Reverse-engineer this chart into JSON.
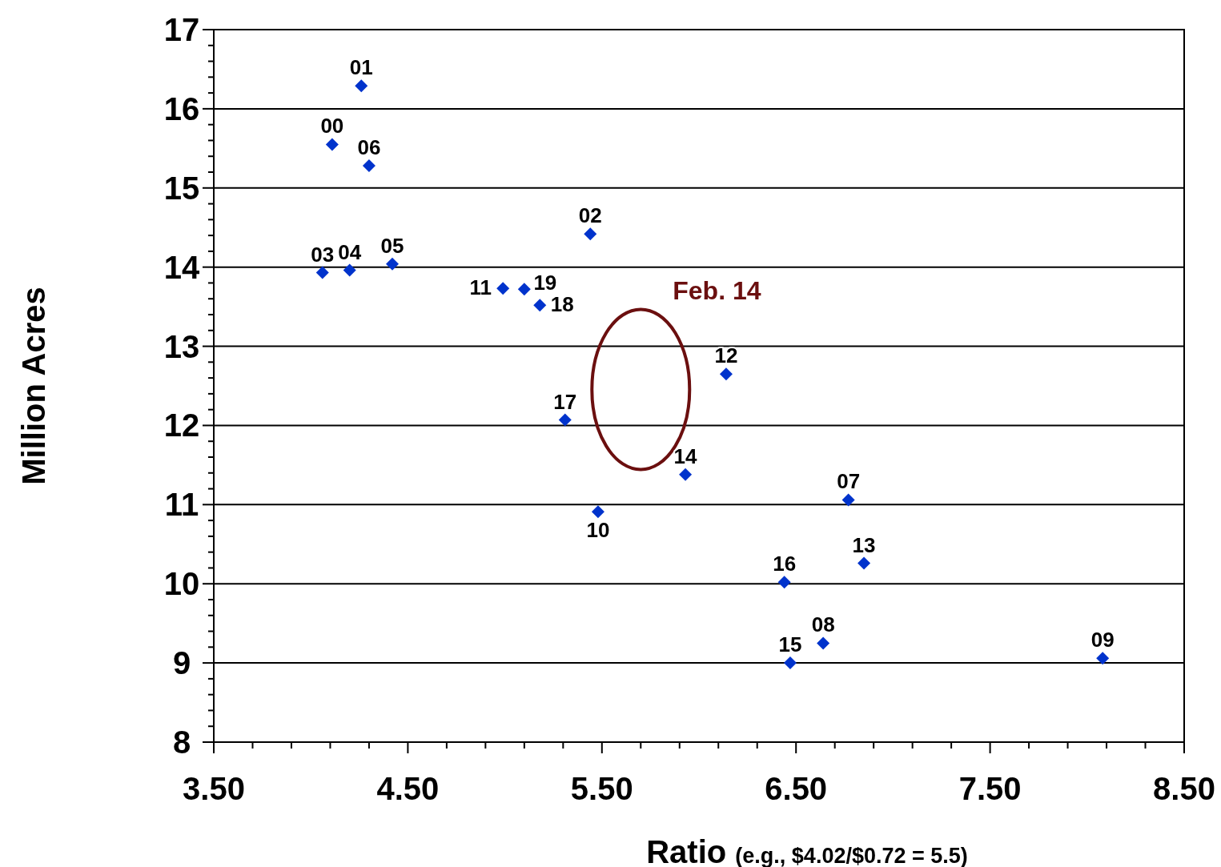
{
  "chart_data": {
    "type": "scatter",
    "xlabel": "Ratio (e.g., $4.02/$0.72 = 5.5)",
    "ylabel": "Million Acres",
    "series": [
      {
        "name": "01",
        "color": "#0033cc",
        "x": [
          4.26
        ],
        "values": [
          16.29
        ]
      },
      {
        "name": "00",
        "color": "#0033cc",
        "x": [
          4.11
        ],
        "values": [
          15.55
        ]
      },
      {
        "name": "06",
        "color": "#0033cc",
        "x": [
          4.3
        ],
        "values": [
          15.28
        ]
      },
      {
        "name": "02",
        "color": "#0033cc",
        "x": [
          5.44
        ],
        "values": [
          14.42
        ]
      },
      {
        "name": "03",
        "color": "#0033cc",
        "x": [
          4.06
        ],
        "values": [
          13.93
        ]
      },
      {
        "name": "04",
        "color": "#0033cc",
        "x": [
          4.2
        ],
        "values": [
          13.96
        ]
      },
      {
        "name": "05",
        "color": "#0033cc",
        "x": [
          4.42
        ],
        "values": [
          14.04
        ]
      },
      {
        "name": "11",
        "color": "#0033cc",
        "x": [
          4.99
        ],
        "values": [
          13.73
        ]
      },
      {
        "name": "19",
        "color": "#0033cc",
        "x": [
          5.1
        ],
        "values": [
          13.72
        ]
      },
      {
        "name": "18",
        "color": "#0033cc",
        "x": [
          5.18
        ],
        "values": [
          13.52
        ]
      },
      {
        "name": "12",
        "color": "#0033cc",
        "x": [
          6.14
        ],
        "values": [
          12.65
        ]
      },
      {
        "name": "17",
        "color": "#0033cc",
        "x": [
          5.31
        ],
        "values": [
          12.07
        ]
      },
      {
        "name": "14",
        "color": "#0033cc",
        "x": [
          5.93
        ],
        "values": [
          11.38
        ]
      },
      {
        "name": "10",
        "color": "#0033cc",
        "x": [
          5.48
        ],
        "values": [
          10.91
        ]
      },
      {
        "name": "07",
        "color": "#0033cc",
        "x": [
          6.77
        ],
        "values": [
          11.06
        ]
      },
      {
        "name": "13",
        "color": "#0033cc",
        "x": [
          6.85
        ],
        "values": [
          10.26
        ]
      },
      {
        "name": "16",
        "color": "#0033cc",
        "x": [
          6.44
        ],
        "values": [
          10.02
        ]
      },
      {
        "name": "08",
        "color": "#0033cc",
        "x": [
          6.64
        ],
        "values": [
          9.25
        ]
      },
      {
        "name": "15",
        "color": "#0033cc",
        "x": [
          6.47
        ],
        "values": [
          9.0
        ]
      },
      {
        "name": "09",
        "color": "#0033cc",
        "x": [
          8.08
        ],
        "values": [
          9.06
        ]
      }
    ],
    "marker": "diamond",
    "grid": "y",
    "xlim": [
      3.5,
      8.5
    ],
    "xticks": [
      {
        "value": 3.5,
        "label": "3.50"
      },
      {
        "value": 3.7,
        "label": null
      },
      {
        "value": 3.9,
        "label": null
      },
      {
        "value": 4.1,
        "label": null
      },
      {
        "value": 4.3,
        "label": null
      },
      {
        "value": 4.5,
        "label": "4.50"
      },
      {
        "value": 4.7,
        "label": null
      },
      {
        "value": 4.9,
        "label": null
      },
      {
        "value": 5.1,
        "label": null
      },
      {
        "value": 5.3,
        "label": null
      },
      {
        "value": 5.5,
        "label": "5.50"
      },
      {
        "value": 5.7,
        "label": null
      },
      {
        "value": 5.9,
        "label": null
      },
      {
        "value": 6.1,
        "label": null
      },
      {
        "value": 6.3,
        "label": null
      },
      {
        "value": 6.5,
        "label": "6.50"
      },
      {
        "value": 6.7,
        "label": null
      },
      {
        "value": 6.9,
        "label": null
      },
      {
        "value": 7.1,
        "label": null
      },
      {
        "value": 7.3,
        "label": null
      },
      {
        "value": 7.5,
        "label": "7.50"
      },
      {
        "value": 7.7,
        "label": null
      },
      {
        "value": 7.9,
        "label": null
      },
      {
        "value": 8.1,
        "label": null
      },
      {
        "value": 8.3,
        "label": null
      },
      {
        "value": 8.5,
        "label": "8.50"
      }
    ],
    "ylim": [
      8,
      17
    ],
    "yticks": [
      8,
      {
        "value": 8.2,
        "label": null
      },
      {
        "value": 8.4,
        "label": null
      },
      {
        "value": 8.6,
        "label": null
      },
      {
        "value": 8.8,
        "label": null
      },
      9,
      {
        "value": 9.2,
        "label": null
      },
      {
        "value": 9.4,
        "label": null
      },
      {
        "value": 9.6,
        "label": null
      },
      {
        "value": 9.8,
        "label": null
      },
      10,
      {
        "value": 10.2,
        "label": null
      },
      {
        "value": 10.4,
        "label": null
      },
      {
        "value": 10.6,
        "label": null
      },
      {
        "value": 10.8,
        "label": null
      },
      11,
      {
        "value": 11.2,
        "label": null
      },
      {
        "value": 11.4,
        "label": null
      },
      {
        "value": 11.6,
        "label": null
      },
      {
        "value": 11.8,
        "label": null
      },
      12,
      {
        "value": 12.2,
        "label": null
      },
      {
        "value": 12.4,
        "label": null
      },
      {
        "value": 12.6,
        "label": null
      },
      {
        "value": 12.8,
        "label": null
      },
      13,
      {
        "value": 13.2,
        "label": null
      },
      {
        "value": 13.4,
        "label": null
      },
      {
        "value": 13.6,
        "label": null
      },
      {
        "value": 13.8,
        "label": null
      },
      14,
      {
        "value": 14.2,
        "label": null
      },
      {
        "value": 14.4,
        "label": null
      },
      {
        "value": 14.6,
        "label": null
      },
      {
        "value": 14.8,
        "label": null
      },
      15,
      {
        "value": 15.2,
        "label": null
      },
      {
        "value": 15.4,
        "label": null
      },
      {
        "value": 15.6,
        "label": null
      },
      {
        "value": 15.8,
        "label": null
      },
      16,
      {
        "value": 16.2,
        "label": null
      },
      {
        "value": 16.4,
        "label": null
      },
      {
        "value": 16.6,
        "label": null
      },
      {
        "value": 16.8,
        "label": null
      },
      17
    ],
    "annotations": [
      "Feb. 14"
    ]
  }
}
